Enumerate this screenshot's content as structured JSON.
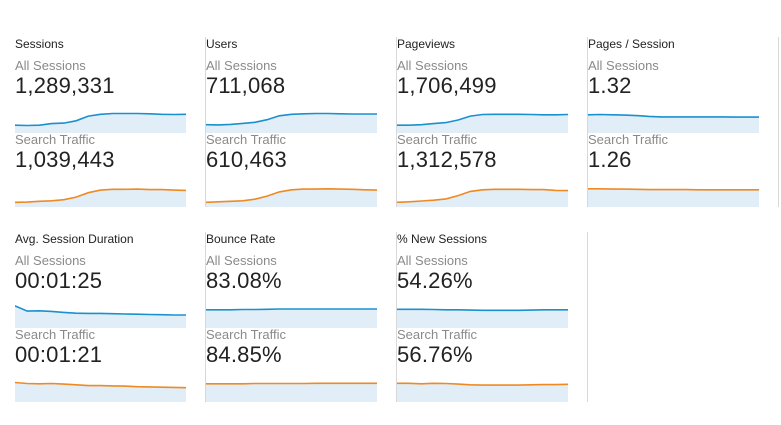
{
  "accent": {
    "blue": "#1a91cf",
    "orange": "#ef8a23",
    "fill": "#e1eef8",
    "divider": "#d8d8d8"
  },
  "cards": [
    {
      "title": "Sessions",
      "segments": [
        {
          "label": "All Sessions",
          "value": "1,289,331",
          "color": "#1a91cf",
          "series": [
            0.3,
            0.29,
            0.3,
            0.36,
            0.38,
            0.47,
            0.65,
            0.72,
            0.75,
            0.75,
            0.75,
            0.74,
            0.72,
            0.71,
            0.72
          ]
        },
        {
          "label": "Search Traffic",
          "value": "1,039,443",
          "color": "#ef8a23",
          "series": [
            0.18,
            0.19,
            0.22,
            0.24,
            0.28,
            0.38,
            0.55,
            0.65,
            0.68,
            0.68,
            0.69,
            0.67,
            0.67,
            0.65,
            0.64
          ]
        }
      ]
    },
    {
      "title": "Users",
      "segments": [
        {
          "label": "All Sessions",
          "value": "711,068",
          "color": "#1a91cf",
          "series": [
            0.32,
            0.31,
            0.33,
            0.37,
            0.41,
            0.51,
            0.66,
            0.72,
            0.74,
            0.75,
            0.75,
            0.74,
            0.73,
            0.73,
            0.73
          ]
        },
        {
          "label": "Search Traffic",
          "value": "610,463",
          "color": "#ef8a23",
          "series": [
            0.18,
            0.2,
            0.22,
            0.24,
            0.3,
            0.42,
            0.58,
            0.66,
            0.69,
            0.69,
            0.7,
            0.69,
            0.68,
            0.66,
            0.65
          ]
        }
      ]
    },
    {
      "title": "Pageviews",
      "segments": [
        {
          "label": "All Sessions",
          "value": "1,706,499",
          "color": "#1a91cf",
          "series": [
            0.3,
            0.3,
            0.32,
            0.36,
            0.4,
            0.5,
            0.65,
            0.71,
            0.72,
            0.72,
            0.72,
            0.71,
            0.7,
            0.7,
            0.71
          ]
        },
        {
          "label": "Search Traffic",
          "value": "1,312,578",
          "color": "#ef8a23",
          "series": [
            0.18,
            0.2,
            0.23,
            0.26,
            0.31,
            0.44,
            0.6,
            0.66,
            0.68,
            0.68,
            0.68,
            0.67,
            0.67,
            0.64,
            0.63
          ]
        }
      ]
    },
    {
      "title": "Pages / Session",
      "segments": [
        {
          "label": "All Sessions",
          "value": "1.32",
          "color": "#1a91cf",
          "series": [
            0.7,
            0.71,
            0.7,
            0.69,
            0.67,
            0.64,
            0.62,
            0.62,
            0.62,
            0.62,
            0.62,
            0.62,
            0.61,
            0.61,
            0.61
          ]
        },
        {
          "label": "Search Traffic",
          "value": "1.26",
          "color": "#ef8a23",
          "series": [
            0.7,
            0.7,
            0.69,
            0.69,
            0.68,
            0.67,
            0.67,
            0.67,
            0.67,
            0.66,
            0.66,
            0.66,
            0.66,
            0.66,
            0.66
          ]
        }
      ]
    },
    {
      "title": "Avg. Session Duration",
      "segments": [
        {
          "label": "All Sessions",
          "value": "00:01:25",
          "color": "#1a91cf",
          "series": [
            0.85,
            0.65,
            0.66,
            0.64,
            0.6,
            0.57,
            0.56,
            0.56,
            0.55,
            0.54,
            0.53,
            0.52,
            0.51,
            0.5,
            0.5
          ]
        },
        {
          "label": "Search Traffic",
          "value": "00:01:21",
          "color": "#ef8a23",
          "series": [
            0.75,
            0.71,
            0.7,
            0.71,
            0.69,
            0.66,
            0.63,
            0.63,
            0.62,
            0.61,
            0.59,
            0.58,
            0.57,
            0.56,
            0.55
          ]
        }
      ]
    },
    {
      "title": "Bounce Rate",
      "segments": [
        {
          "label": "All Sessions",
          "value": "83.08%",
          "color": "#1a91cf",
          "series": [
            0.7,
            0.7,
            0.7,
            0.71,
            0.71,
            0.72,
            0.73,
            0.73,
            0.73,
            0.73,
            0.73,
            0.73,
            0.73,
            0.73,
            0.73
          ]
        },
        {
          "label": "Search Traffic",
          "value": "84.85%",
          "color": "#ef8a23",
          "series": [
            0.7,
            0.7,
            0.7,
            0.7,
            0.71,
            0.71,
            0.71,
            0.71,
            0.71,
            0.72,
            0.72,
            0.72,
            0.72,
            0.72,
            0.72
          ]
        }
      ]
    },
    {
      "title": "% New Sessions",
      "segments": [
        {
          "label": "All Sessions",
          "value": "54.26%",
          "color": "#1a91cf",
          "series": [
            0.72,
            0.72,
            0.72,
            0.71,
            0.7,
            0.7,
            0.69,
            0.68,
            0.68,
            0.68,
            0.68,
            0.69,
            0.7,
            0.7,
            0.7
          ]
        },
        {
          "label": "Search Traffic",
          "value": "56.76%",
          "color": "#ef8a23",
          "series": [
            0.72,
            0.72,
            0.7,
            0.72,
            0.71,
            0.69,
            0.66,
            0.65,
            0.65,
            0.65,
            0.65,
            0.66,
            0.67,
            0.67,
            0.68
          ]
        }
      ]
    }
  ]
}
